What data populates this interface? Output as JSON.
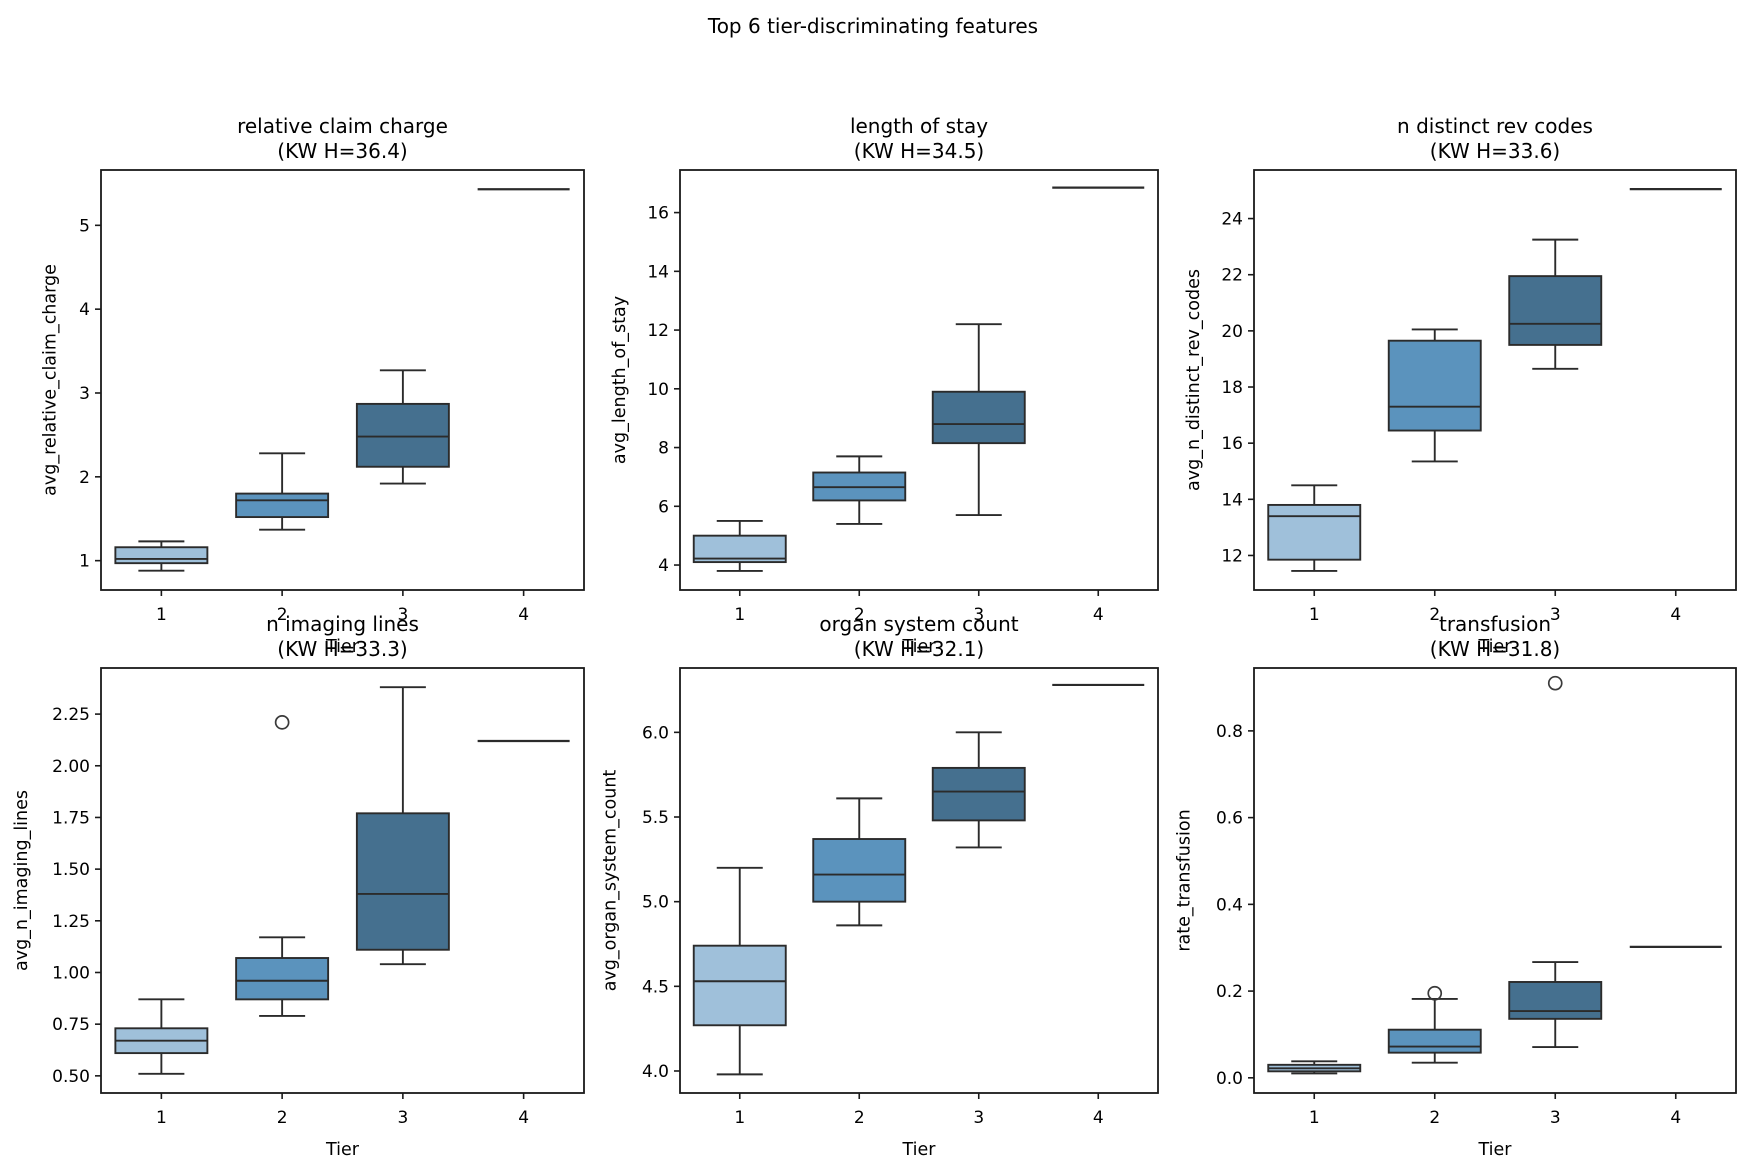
{
  "suptitle": "Top 6 tier-discriminating features",
  "palette": [
    "#9fc0da",
    "#5b93bd",
    "#45708f",
    "#2e5570"
  ],
  "colors": {
    "background": "#ffffff",
    "axis": "#1a1a1a",
    "box_edge": "#2b2b2b",
    "outlier": "#3a3a3a"
  },
  "chart_data": [
    {
      "type": "box",
      "title": "relative claim charge",
      "subtitle": "(KW H=36.4)",
      "xlabel": "Tier",
      "ylabel": "avg_relative_claim_charge",
      "categories": [
        "1",
        "2",
        "3",
        "4"
      ],
      "ylim": [
        0.65,
        5.66
      ],
      "yticks": [
        1,
        2,
        3,
        4,
        5
      ],
      "ytick_labels": [
        "1",
        "2",
        "3",
        "4",
        "5"
      ],
      "grid": false,
      "legend": null,
      "boxes": [
        {
          "tier": "1",
          "whislo": 0.88,
          "q1": 0.97,
          "med": 1.02,
          "q3": 1.16,
          "whishi": 1.23,
          "outliers": []
        },
        {
          "tier": "2",
          "whislo": 1.37,
          "q1": 1.52,
          "med": 1.72,
          "q3": 1.8,
          "whishi": 2.28,
          "outliers": []
        },
        {
          "tier": "3",
          "whislo": 1.92,
          "q1": 2.12,
          "med": 2.48,
          "q3": 2.87,
          "whishi": 3.27,
          "outliers": []
        },
        {
          "tier": "4",
          "single": 5.43,
          "outliers": []
        }
      ]
    },
    {
      "type": "box",
      "title": "length of stay",
      "subtitle": "(KW H=34.5)",
      "xlabel": "Tier",
      "ylabel": "avg_length_of_stay",
      "categories": [
        "1",
        "2",
        "3",
        "4"
      ],
      "ylim": [
        3.15,
        17.45
      ],
      "yticks": [
        4,
        6,
        8,
        10,
        12,
        14,
        16
      ],
      "ytick_labels": [
        "4",
        "6",
        "8",
        "10",
        "12",
        "14",
        "16"
      ],
      "grid": false,
      "legend": null,
      "boxes": [
        {
          "tier": "1",
          "whislo": 3.8,
          "q1": 4.1,
          "med": 4.22,
          "q3": 5.0,
          "whishi": 5.5,
          "outliers": []
        },
        {
          "tier": "2",
          "whislo": 5.4,
          "q1": 6.2,
          "med": 6.65,
          "q3": 7.15,
          "whishi": 7.7,
          "outliers": []
        },
        {
          "tier": "3",
          "whislo": 5.7,
          "q1": 8.15,
          "med": 8.8,
          "q3": 9.9,
          "whishi": 12.2,
          "outliers": []
        },
        {
          "tier": "4",
          "single": 16.85,
          "outliers": []
        }
      ]
    },
    {
      "type": "box",
      "title": "n distinct rev codes",
      "subtitle": "(KW H=33.6)",
      "xlabel": "Tier",
      "ylabel": "avg_n_distinct_rev_codes",
      "categories": [
        "1",
        "2",
        "3",
        "4"
      ],
      "ylim": [
        10.77,
        25.73
      ],
      "yticks": [
        12,
        14,
        16,
        18,
        20,
        22,
        24
      ],
      "ytick_labels": [
        "12",
        "14",
        "16",
        "18",
        "20",
        "22",
        "24"
      ],
      "grid": false,
      "legend": null,
      "boxes": [
        {
          "tier": "1",
          "whislo": 11.45,
          "q1": 11.85,
          "med": 13.4,
          "q3": 13.8,
          "whishi": 14.5,
          "outliers": []
        },
        {
          "tier": "2",
          "whislo": 15.35,
          "q1": 16.45,
          "med": 17.3,
          "q3": 19.65,
          "whishi": 20.05,
          "outliers": []
        },
        {
          "tier": "3",
          "whislo": 18.65,
          "q1": 19.5,
          "med": 20.25,
          "q3": 21.95,
          "whishi": 23.25,
          "outliers": []
        },
        {
          "tier": "4",
          "single": 25.05,
          "outliers": []
        }
      ]
    },
    {
      "type": "box",
      "title": "n imaging lines",
      "subtitle": "(KW H=33.3)",
      "xlabel": "Tier",
      "ylabel": "avg_n_imaging_lines",
      "categories": [
        "1",
        "2",
        "3",
        "4"
      ],
      "ylim": [
        0.417,
        2.473
      ],
      "yticks": [
        0.5,
        0.75,
        1.0,
        1.25,
        1.5,
        1.75,
        2.0,
        2.25
      ],
      "ytick_labels": [
        "0.50",
        "0.75",
        "1.00",
        "1.25",
        "1.50",
        "1.75",
        "2.00",
        "2.25"
      ],
      "grid": false,
      "legend": null,
      "boxes": [
        {
          "tier": "1",
          "whislo": 0.51,
          "q1": 0.61,
          "med": 0.67,
          "q3": 0.73,
          "whishi": 0.87,
          "outliers": []
        },
        {
          "tier": "2",
          "whislo": 0.79,
          "q1": 0.87,
          "med": 0.96,
          "q3": 1.07,
          "whishi": 1.17,
          "outliers": [
            2.21
          ]
        },
        {
          "tier": "3",
          "whislo": 1.04,
          "q1": 1.11,
          "med": 1.38,
          "q3": 1.77,
          "whishi": 2.38,
          "outliers": []
        },
        {
          "tier": "4",
          "single": 2.12,
          "outliers": []
        }
      ]
    },
    {
      "type": "box",
      "title": "organ system count",
      "subtitle": "(KW H=32.1)",
      "xlabel": "Tier",
      "ylabel": "avg_organ_system_count",
      "categories": [
        "1",
        "2",
        "3",
        "4"
      ],
      "ylim": [
        3.87,
        6.38
      ],
      "yticks": [
        4.0,
        4.5,
        5.0,
        5.5,
        6.0
      ],
      "ytick_labels": [
        "4.0",
        "4.5",
        "5.0",
        "5.5",
        "6.0"
      ],
      "grid": false,
      "legend": null,
      "boxes": [
        {
          "tier": "1",
          "whislo": 3.98,
          "q1": 4.27,
          "med": 4.53,
          "q3": 4.74,
          "whishi": 5.2,
          "outliers": []
        },
        {
          "tier": "2",
          "whislo": 4.86,
          "q1": 5.0,
          "med": 5.16,
          "q3": 5.37,
          "whishi": 5.61,
          "outliers": []
        },
        {
          "tier": "3",
          "whislo": 5.32,
          "q1": 5.48,
          "med": 5.65,
          "q3": 5.79,
          "whishi": 6.0,
          "outliers": []
        },
        {
          "tier": "4",
          "single": 6.28,
          "outliers": []
        }
      ]
    },
    {
      "type": "box",
      "title": "transfusion",
      "subtitle": "(KW H=31.8)",
      "xlabel": "Tier",
      "ylabel": "rate_transfusion",
      "categories": [
        "1",
        "2",
        "3",
        "4"
      ],
      "ylim": [
        -0.035,
        0.945
      ],
      "yticks": [
        0.0,
        0.2,
        0.4,
        0.6,
        0.8
      ],
      "ytick_labels": [
        "0.0",
        "0.2",
        "0.4",
        "0.6",
        "0.8"
      ],
      "grid": false,
      "legend": null,
      "boxes": [
        {
          "tier": "1",
          "whislo": 0.01,
          "q1": 0.015,
          "med": 0.022,
          "q3": 0.03,
          "whishi": 0.038,
          "outliers": []
        },
        {
          "tier": "2",
          "whislo": 0.035,
          "q1": 0.058,
          "med": 0.072,
          "q3": 0.111,
          "whishi": 0.182,
          "outliers": [
            0.195
          ]
        },
        {
          "tier": "3",
          "whislo": 0.071,
          "q1": 0.136,
          "med": 0.154,
          "q3": 0.221,
          "whishi": 0.267,
          "outliers": [
            0.91
          ]
        },
        {
          "tier": "4",
          "single": 0.302,
          "outliers": []
        }
      ]
    }
  ]
}
